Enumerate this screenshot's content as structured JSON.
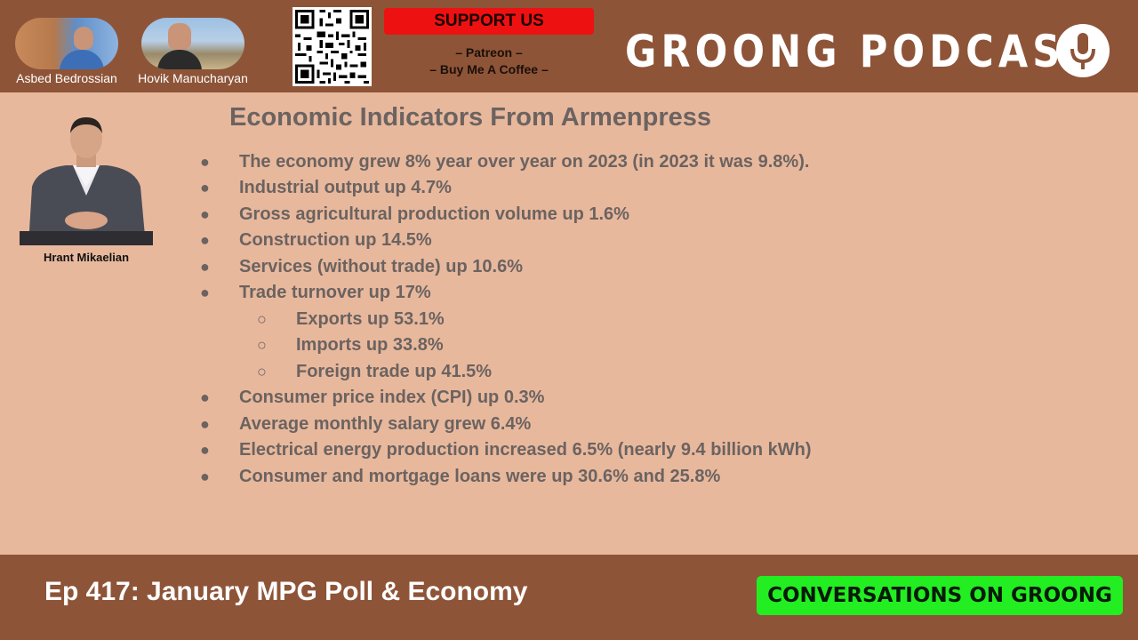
{
  "hosts": [
    {
      "name": "Asbed Bedrossian"
    },
    {
      "name": "Hovik Manucharyan"
    }
  ],
  "support": {
    "title": "SUPPORT US",
    "links": [
      "– Patreon –",
      "– Buy Me A Coffee –"
    ]
  },
  "brand": {
    "title": "GROONG PODCAST",
    "logo_icon": "microphone-icon"
  },
  "guest": {
    "name": "Hrant Mikaelian"
  },
  "slide": {
    "title": "Economic Indicators From Armenpress",
    "bullets": [
      {
        "marker": "●",
        "text": "The economy grew 8% year over year on 2023 (in 2023 it was 9.8%)."
      },
      {
        "marker": "●",
        "text": "Industrial output up 4.7%"
      },
      {
        "marker": "●",
        "text": "Gross agricultural production volume up 1.6%"
      },
      {
        "marker": "●",
        "text": "Construction up 14.5%"
      },
      {
        "marker": "●",
        "text": "Services (without trade) up 10.6%"
      },
      {
        "marker": "●",
        "text": "Trade turnover up 17%"
      },
      {
        "marker": "○",
        "text": "Exports up 53.1%"
      },
      {
        "marker": "○",
        "text": "Imports up 33.8%"
      },
      {
        "marker": "○",
        "text": "Foreign trade up 41.5%"
      },
      {
        "marker": "●",
        "text": "Consumer price index (CPI) up 0.3%"
      },
      {
        "marker": "●",
        "text": "Average monthly salary grew 6.4%"
      },
      {
        "marker": "●",
        "text": "Electrical energy production increased 6.5% (nearly 9.4 billion kWh)"
      },
      {
        "marker": "●",
        "text": "Consumer and mortgage loans were up 30.6% and 25.8%"
      }
    ]
  },
  "footer": {
    "episode_title": "Ep 417: January MPG Poll & Economy",
    "show_badge": "CONVERSATIONS ON GROONG"
  },
  "colors": {
    "bar_brown": "#8e5438",
    "slide_bg": "#e8b89d",
    "text_gray": "#6b6360",
    "support_red": "#ee1111",
    "badge_green": "#22ee22"
  }
}
